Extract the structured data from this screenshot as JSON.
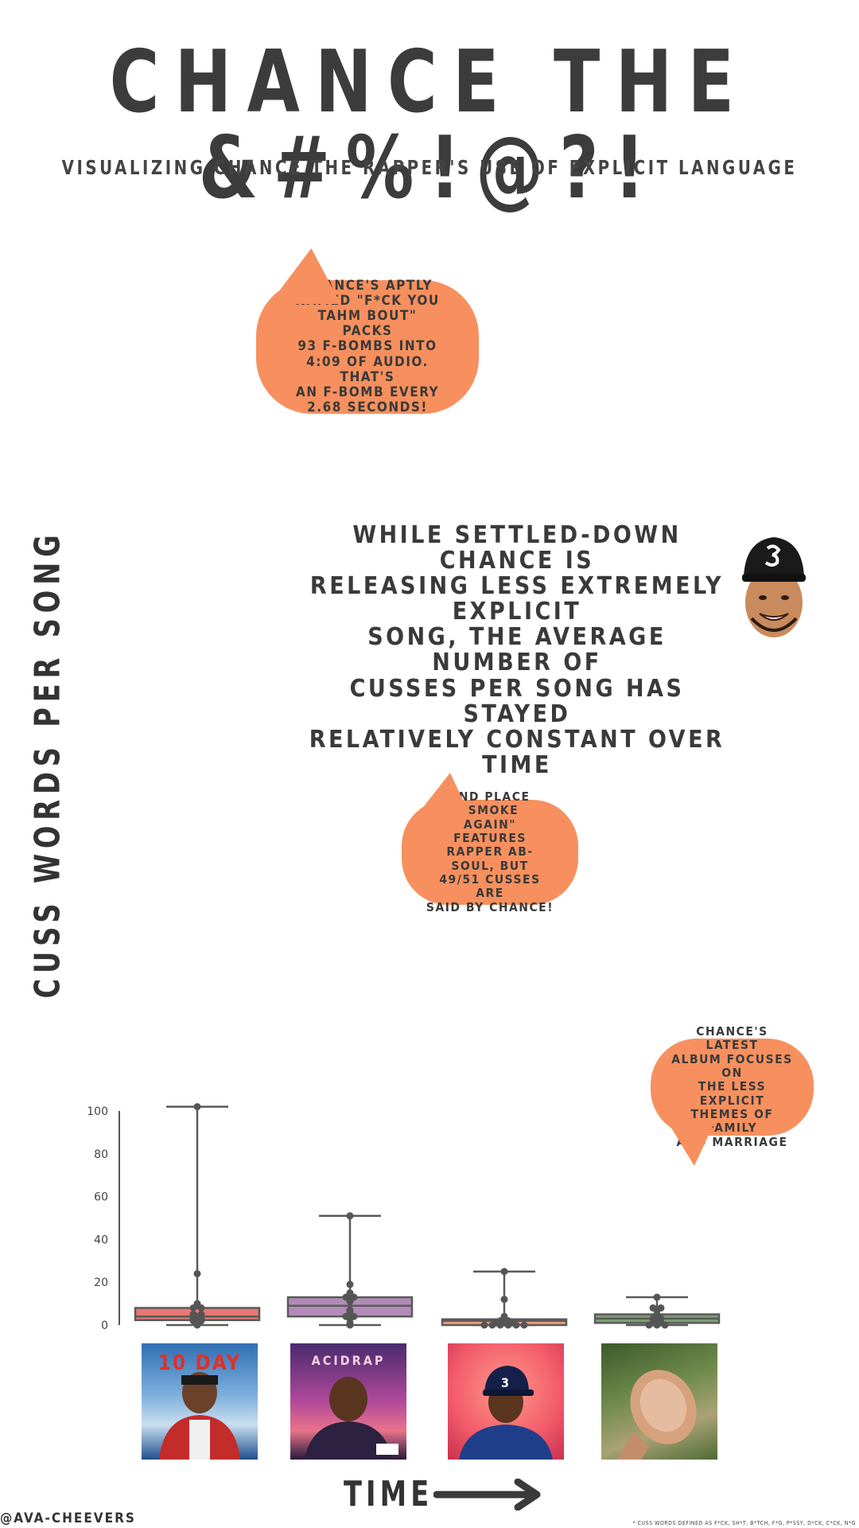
{
  "title": "CHANCE THE &#%!@?!",
  "subtitle": "VISUALIZING CHANCE THE RAPPER'S USE OF EXPLICIT LANGUAGE",
  "colors": {
    "box_1": "#E87874",
    "box_2": "#B28BB8",
    "box_3": "#EE9C7C",
    "box_4": "#7E9F73",
    "bubble": "#F7905E",
    "line": "#5a5a5a"
  },
  "chart_data": {
    "type": "box",
    "ylabel": "CUSS WORDS PER SONG",
    "xlabel": "TIME",
    "ylim": [
      0,
      102
    ],
    "yticks": [
      0,
      20,
      40,
      60,
      80,
      100
    ],
    "grid": false,
    "boxes": [
      {
        "min": 0,
        "q1": 2.3,
        "median": 4,
        "q3": 8,
        "max": 102,
        "points": [
          0,
          1,
          2,
          2,
          3,
          3,
          4,
          5,
          5,
          8,
          8,
          10,
          24,
          102
        ]
      },
      {
        "min": 0,
        "q1": 4,
        "median": 9,
        "q3": 13,
        "max": 51,
        "points": [
          0,
          1,
          3,
          4,
          4,
          6,
          7,
          11,
          13,
          13,
          15,
          19,
          51
        ]
      },
      {
        "min": 0,
        "q1": 0,
        "median": 2,
        "q3": 2.7,
        "max": 25,
        "points": [
          0,
          0,
          0,
          0,
          0,
          0,
          1,
          1,
          1,
          2,
          2,
          3,
          4,
          12,
          25
        ]
      },
      {
        "min": 0,
        "q1": 1,
        "median": 3,
        "q3": 5,
        "max": 13,
        "points": [
          0,
          0,
          0,
          1,
          1,
          2,
          3,
          3,
          4,
          5,
          7,
          8,
          8,
          13
        ]
      }
    ]
  },
  "bubbles": {
    "b1": [
      "CHANCE'S APTLY",
      "NAMED \"F*CK YOU",
      "TAHM BOUT\" PACKS",
      "93 F-BOMBS INTO",
      "4:09 OF AUDIO. THAT'S",
      "AN F-BOMB EVERY",
      "2.68 SECONDS!"
    ],
    "b2": [
      "2ND PLACE \"SMOKE",
      "AGAIN\" FEATURES",
      "RAPPER AB-SOUL, BUT",
      "49/51 CUSSES ARE",
      "SAID BY CHANCE!"
    ],
    "b3": [
      "CHANCE'S LATEST",
      "ALBUM FOCUSES ON",
      "THE LESS EXPLICIT",
      "THEMES OF FAMILY",
      "AND MARRIAGE"
    ]
  },
  "callout": [
    "WHILE SETTLED-DOWN CHANCE IS",
    "RELEASING LESS EXTREMELY EXPLICIT",
    "SONG, THE AVERAGE NUMBER OF",
    "CUSSES PER SONG HAS STAYED",
    "RELATIVELY CONSTANT OVER TIME"
  ],
  "albums": {
    "a1_text": "10 DAY",
    "a2_text": "ACIDRAP",
    "a3_text": "3"
  },
  "handle": "@AVA-CHEEVERS",
  "footnote": "* CUSS WORDS DEFINED AS F*CK, SH*T, B*TCH, F*G, P*SSY, D*CK, C*CK, N*G"
}
